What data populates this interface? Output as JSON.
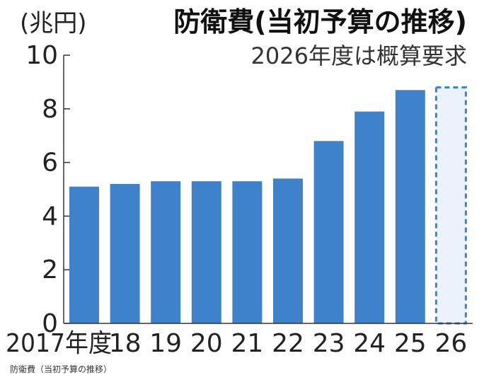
{
  "chart_data": {
    "type": "bar",
    "title": "防衛費(当初予算の推移)",
    "subtitle": "2026年度は概算要求",
    "ylabel": "(兆円)",
    "xlabel": "",
    "ylim": [
      0,
      10
    ],
    "yticks": [
      "0",
      "2",
      "4",
      "6",
      "8",
      "10"
    ],
    "grid": false,
    "categories": [
      "2017年度",
      "18",
      "19",
      "20",
      "21",
      "22",
      "23",
      "24",
      "25",
      "26"
    ],
    "values": [
      5.1,
      5.2,
      5.3,
      5.3,
      5.3,
      5.4,
      6.8,
      7.9,
      8.7,
      8.8
    ],
    "estimated": [
      false,
      false,
      false,
      false,
      false,
      false,
      false,
      false,
      false,
      true
    ],
    "colors": {
      "bar": "#3e82cb",
      "estimate_fill": "#eaf3fb",
      "estimate_border": "#3e82cb",
      "axis": "#333333"
    }
  },
  "caption": "防衛費（当初予算の推移）"
}
